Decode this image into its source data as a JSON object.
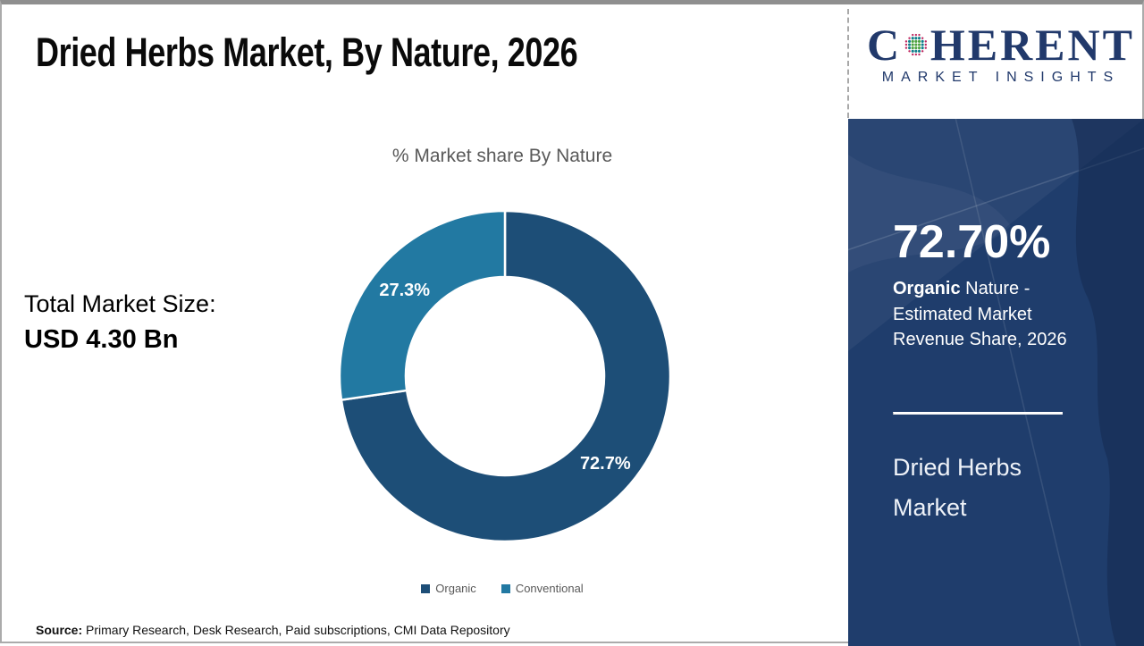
{
  "page": {
    "title": "Dried Herbs Market, By Nature, 2026",
    "source_label": "Source:",
    "source_text": "Primary Research, Desk Research, Paid subscriptions, CMI Data Repository"
  },
  "logo": {
    "company": "Coherent Market Insights",
    "wordmark_prefix": "C",
    "wordmark_suffix": "HERENT",
    "subtitle": "MARKET INSIGHTS",
    "navy": "#21396B",
    "dot_colors": {
      "inner": "#4CA23F",
      "middle": "#0F7F8B",
      "outer": "#C02A62"
    }
  },
  "summary": {
    "total_label": "Total Market Size:",
    "total_value": "USD 4.30 Bn"
  },
  "chart_data": {
    "type": "pie",
    "subtype": "donut",
    "title": "% Market share By Nature",
    "categories": [
      "Organic",
      "Conventional"
    ],
    "values": [
      72.7,
      27.3
    ],
    "slice_labels": [
      "72.7%",
      "27.3%"
    ],
    "colors": [
      "#1D4E77",
      "#2279A2"
    ],
    "label_color": "#ffffff",
    "inner_radius_ratio": 0.6,
    "start_angle_deg": 0,
    "direction": "clockwise",
    "legend_position": "bottom"
  },
  "panel": {
    "bg_color": "#1F3D6C",
    "stat_value": "72.70%",
    "desc_bold": "Organic",
    "desc_rest": "Nature - Estimated Market Revenue Share, 2026",
    "market_name": "Dried Herbs Market"
  }
}
